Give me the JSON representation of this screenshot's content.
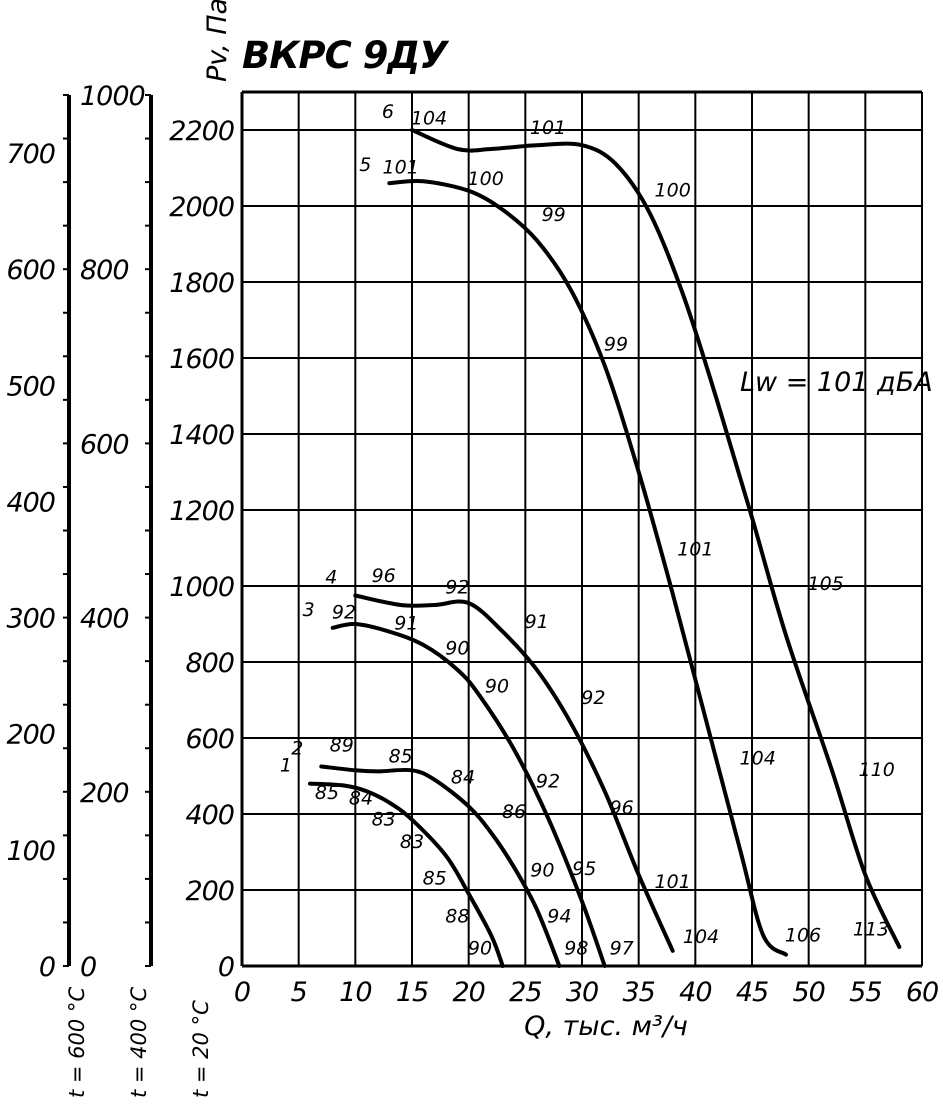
{
  "chart_data": {
    "type": "line",
    "title": "ВКРС 9ДУ",
    "xlabel": "Q, тыс. м³/ч",
    "ylabel": "Pv, Па",
    "annotation": "Lw = 101 дБА",
    "xlim": [
      0,
      60
    ],
    "ylim": [
      0,
      2300
    ],
    "x_ticks": [
      "0",
      "5",
      "10",
      "15",
      "20",
      "25",
      "30",
      "35",
      "40",
      "45",
      "50",
      "55",
      "60"
    ],
    "y_ticks": [
      "0",
      "200",
      "400",
      "600",
      "800",
      "1000",
      "1200",
      "1400",
      "1600",
      "1800",
      "2000",
      "2200"
    ],
    "grid": true,
    "temp_axes": [
      {
        "label": "t = 20 °C",
        "ticks": []
      },
      {
        "label": "t = 400 °C",
        "ticks": [
          "0",
          "200",
          "400",
          "600",
          "800",
          "1000"
        ]
      },
      {
        "label": "t = 600 °C",
        "ticks": [
          "0",
          "100",
          "200",
          "300",
          "400",
          "500",
          "600",
          "700"
        ]
      }
    ],
    "series": [
      {
        "name": "1",
        "points": [
          [
            6,
            480
          ],
          [
            9,
            475
          ],
          [
            11,
            460
          ],
          [
            13,
            430
          ],
          [
            15,
            385
          ],
          [
            18,
            290
          ],
          [
            20,
            190
          ],
          [
            22,
            80
          ],
          [
            23,
            0
          ]
        ],
        "labels": [
          {
            "x": 7.5,
            "y": 440,
            "text": "85"
          },
          {
            "x": 10.5,
            "y": 425,
            "text": "84"
          },
          {
            "x": 12.5,
            "y": 370,
            "text": "83"
          },
          {
            "x": 15,
            "y": 310,
            "text": "83"
          },
          {
            "x": 17,
            "y": 215,
            "text": "85"
          },
          {
            "x": 19,
            "y": 115,
            "text": "88"
          },
          {
            "x": 21,
            "y": 30,
            "text": "90"
          }
        ]
      },
      {
        "name": "2",
        "points": [
          [
            7,
            525
          ],
          [
            10,
            515
          ],
          [
            12,
            512
          ],
          [
            15,
            515
          ],
          [
            17,
            490
          ],
          [
            20,
            420
          ],
          [
            22,
            350
          ],
          [
            24,
            260
          ],
          [
            26,
            150
          ],
          [
            28,
            0
          ]
        ],
        "labels": [
          {
            "x": 8.8,
            "y": 565,
            "text": "89"
          },
          {
            "x": 14,
            "y": 535,
            "text": "85"
          },
          {
            "x": 19.5,
            "y": 480,
            "text": "84"
          },
          {
            "x": 24,
            "y": 390,
            "text": "86"
          },
          {
            "x": 26.5,
            "y": 235,
            "text": "90"
          },
          {
            "x": 28,
            "y": 115,
            "text": "94"
          },
          {
            "x": 29.5,
            "y": 30,
            "text": "98"
          }
        ]
      },
      {
        "name": "3",
        "points": [
          [
            8,
            890
          ],
          [
            10,
            900
          ],
          [
            13,
            880
          ],
          [
            16,
            845
          ],
          [
            19,
            780
          ],
          [
            21,
            710
          ],
          [
            24,
            570
          ],
          [
            27,
            390
          ],
          [
            30,
            170
          ],
          [
            32,
            0
          ]
        ],
        "labels": [
          {
            "x": 9,
            "y": 915,
            "text": "92"
          },
          {
            "x": 14.5,
            "y": 885,
            "text": "91"
          },
          {
            "x": 19,
            "y": 820,
            "text": "90"
          },
          {
            "x": 22.5,
            "y": 720,
            "text": "90"
          },
          {
            "x": 27,
            "y": 470,
            "text": "92"
          },
          {
            "x": 30.2,
            "y": 240,
            "text": "95"
          },
          {
            "x": 33.5,
            "y": 30,
            "text": "97"
          }
        ]
      },
      {
        "name": "4",
        "points": [
          [
            10,
            975
          ],
          [
            14,
            950
          ],
          [
            17,
            950
          ],
          [
            20,
            955
          ],
          [
            23,
            880
          ],
          [
            26,
            780
          ],
          [
            29,
            640
          ],
          [
            32,
            460
          ],
          [
            35,
            240
          ],
          [
            38,
            40
          ]
        ],
        "labels": [
          {
            "x": 12.5,
            "y": 1010,
            "text": "96"
          },
          {
            "x": 19,
            "y": 980,
            "text": "92"
          },
          {
            "x": 26,
            "y": 890,
            "text": "91"
          },
          {
            "x": 31,
            "y": 690,
            "text": "92"
          },
          {
            "x": 33.5,
            "y": 400,
            "text": "96"
          },
          {
            "x": 38,
            "y": 205,
            "text": "101"
          },
          {
            "x": 40.5,
            "y": 60,
            "text": "104"
          }
        ]
      },
      {
        "name": "5",
        "points": [
          [
            13,
            2060
          ],
          [
            16,
            2065
          ],
          [
            20,
            2040
          ],
          [
            23,
            1990
          ],
          [
            26,
            1910
          ],
          [
            29,
            1780
          ],
          [
            32,
            1580
          ],
          [
            35,
            1300
          ],
          [
            38,
            980
          ],
          [
            41,
            640
          ],
          [
            44,
            300
          ],
          [
            46,
            80
          ],
          [
            48,
            30
          ]
        ],
        "labels": [
          {
            "x": 14,
            "y": 2085,
            "text": "101"
          },
          {
            "x": 21.5,
            "y": 2055,
            "text": "100"
          },
          {
            "x": 27.5,
            "y": 1960,
            "text": "99"
          },
          {
            "x": 33,
            "y": 1620,
            "text": "99"
          },
          {
            "x": 40,
            "y": 1080,
            "text": "101"
          },
          {
            "x": 45.5,
            "y": 530,
            "text": "104"
          },
          {
            "x": 49.5,
            "y": 65,
            "text": "106"
          }
        ]
      },
      {
        "name": "6",
        "points": [
          [
            15,
            2200
          ],
          [
            19,
            2150
          ],
          [
            22,
            2150
          ],
          [
            26,
            2160
          ],
          [
            30,
            2160
          ],
          [
            33,
            2110
          ],
          [
            36,
            1980
          ],
          [
            39,
            1760
          ],
          [
            42,
            1480
          ],
          [
            45,
            1180
          ],
          [
            48,
            870
          ],
          [
            52,
            520
          ],
          [
            55,
            240
          ],
          [
            58,
            50
          ]
        ],
        "labels": [
          {
            "x": 16.5,
            "y": 2215,
            "text": "104"
          },
          {
            "x": 27,
            "y": 2190,
            "text": "101"
          },
          {
            "x": 38,
            "y": 2025,
            "text": "100"
          },
          {
            "x": 51.5,
            "y": 990,
            "text": "105"
          },
          {
            "x": 56,
            "y": 500,
            "text": "110"
          },
          {
            "x": 55.5,
            "y": 80,
            "text": "113"
          }
        ]
      }
    ]
  }
}
